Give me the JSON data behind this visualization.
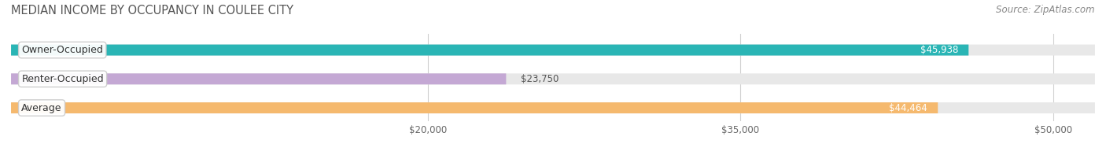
{
  "title": "MEDIAN INCOME BY OCCUPANCY IN COULEE CITY",
  "source": "Source: ZipAtlas.com",
  "categories": [
    "Owner-Occupied",
    "Renter-Occupied",
    "Average"
  ],
  "values": [
    45938,
    23750,
    44464
  ],
  "bar_colors": [
    "#2ab5b5",
    "#c4a8d4",
    "#f5b96e"
  ],
  "bar_bg_color": "#e8e8e8",
  "label_color_light": "#ffffff",
  "label_color_dark": "#555555",
  "value_labels": [
    "$45,938",
    "$23,750",
    "$44,464"
  ],
  "tick_labels": [
    "$20,000",
    "$35,000",
    "$50,000"
  ],
  "tick_values": [
    20000,
    35000,
    50000
  ],
  "xmax": 52000,
  "background_color": "#ffffff",
  "title_fontsize": 10.5,
  "source_fontsize": 8.5,
  "tick_fontsize": 8.5,
  "bar_label_fontsize": 8.5,
  "category_label_fontsize": 9
}
